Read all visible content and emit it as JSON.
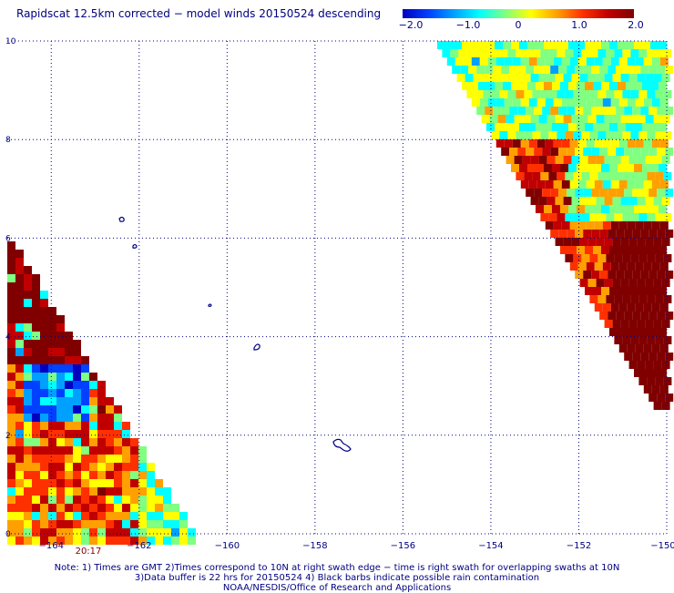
{
  "title": "Rapidscat 12.5km corrected − model winds 20150524 descending",
  "colorbar": {
    "labels": [
      "−2.0",
      "−1.0",
      "0",
      "1.0",
      "2.0"
    ],
    "values": [
      -2.0,
      -1.0,
      0,
      1.0,
      2.0
    ],
    "colors": [
      "#0000c0",
      "#0040ff",
      "#00a0ff",
      "#00ffff",
      "#80ff80",
      "#ffff00",
      "#ffa000",
      "#ff3000",
      "#c00000",
      "#800000"
    ]
  },
  "axes": {
    "x_ticks": [
      -164,
      -162,
      -160,
      -158,
      -156,
      -154,
      -152,
      -150
    ],
    "x_labels": [
      "−164",
      "−162",
      "−160",
      "−158",
      "−156",
      "−154",
      "−152",
      "−150"
    ],
    "y_ticks": [
      0,
      2,
      4,
      6,
      8,
      10
    ],
    "y_labels": [
      "0",
      "2",
      "4",
      "6",
      "8",
      "10"
    ],
    "xlim": [
      -165,
      -150
    ],
    "ylim": [
      0,
      10
    ],
    "grid": true
  },
  "time_label": "20:17",
  "notes": [
    "Note: 1) Times are GMT 2)Times correspond to 10N at right swath edge − time is right swath for overlapping swaths at 10N",
    "3)Data buffer is 22 hrs for 20150524 4) Black barbs indicate possible rain contamination",
    "NOAA/NESDIS/Office of Research and Applications"
  ]
}
